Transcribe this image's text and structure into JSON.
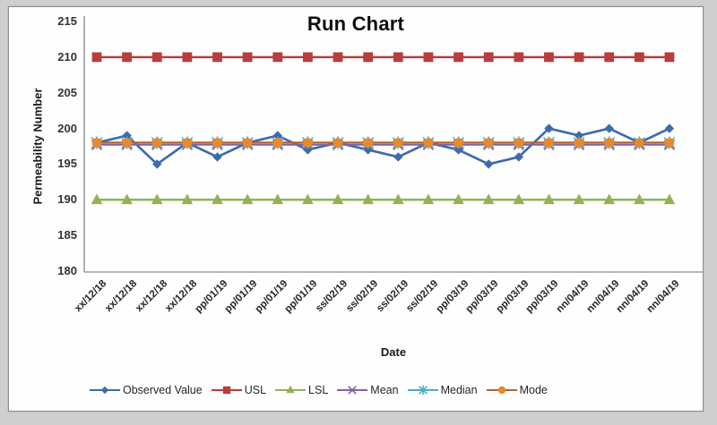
{
  "frame": {
    "background": "#cfcfcf",
    "panel_background": "#fefefe",
    "panel_border": "#8f8f8f",
    "axis_color": "#9b9b9b",
    "tick_text_color": "#333333"
  },
  "chart_data": {
    "type": "line",
    "title": "Run Chart",
    "xlabel": "Date",
    "ylabel": "Permeability Number",
    "ylim": [
      180,
      215
    ],
    "ytick_step": 5,
    "yticks": [
      215,
      210,
      205,
      200,
      195,
      190,
      185,
      180
    ],
    "grid": false,
    "legend_position": "bottom",
    "categories": [
      "xx/12/18",
      "xx/12/18",
      "xx/12/18",
      "xx/12/18",
      "pp/01/19",
      "pp/01/19",
      "pp/01/19",
      "pp/01/19",
      "ss/02/19",
      "ss/02/19",
      "ss/02/19",
      "ss/02/19",
      "pp/03/19",
      "pp/03/19",
      "pp/03/19",
      "pp/03/19",
      "nn/04/19",
      "nn/04/19",
      "nn/04/19",
      "nn/04/19"
    ],
    "series": [
      {
        "name": "Observed Value",
        "marker": "diamond",
        "color": "#3e6bae",
        "values": [
          198,
          199,
          195,
          198,
          196,
          198,
          199,
          197,
          198,
          197,
          196,
          198,
          197,
          195,
          196,
          200,
          199,
          200,
          198,
          200
        ]
      },
      {
        "name": "USL",
        "marker": "square",
        "color": "#b83d3d",
        "constant": 210
      },
      {
        "name": "LSL",
        "marker": "triangle",
        "color": "#94b254",
        "constant": 190
      },
      {
        "name": "Mean",
        "marker": "x",
        "color": "#8064a2",
        "constant": 197.7
      },
      {
        "name": "Median",
        "marker": "asterisk",
        "color": "#4bacc6",
        "constant": 198
      },
      {
        "name": "Mode",
        "marker": "circle",
        "color": "#e78a2e",
        "line_color": "#b5622f",
        "constant": 198
      }
    ]
  }
}
